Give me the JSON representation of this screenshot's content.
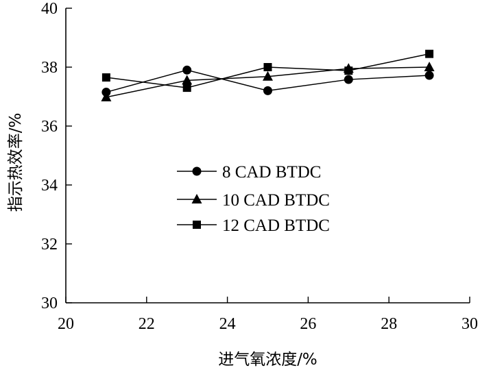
{
  "chart_data": {
    "type": "line",
    "xlabel": "进气氧浓度/%",
    "ylabel": "指示热效率/%",
    "xlim": [
      20,
      30
    ],
    "ylim": [
      30,
      40
    ],
    "xticks": [
      "20",
      "22",
      "24",
      "26",
      "28",
      "30"
    ],
    "yticks": [
      "30",
      "32",
      "34",
      "36",
      "38",
      "40"
    ],
    "grid": false,
    "legend_position": "center-left",
    "x": [
      21,
      23,
      25,
      27,
      29
    ],
    "series": [
      {
        "name": "8 CAD BTDC",
        "marker": "circle",
        "values": [
          37.15,
          37.9,
          37.2,
          37.58,
          37.72
        ]
      },
      {
        "name": "10 CAD BTDC",
        "marker": "triangle",
        "values": [
          36.98,
          37.55,
          37.68,
          37.95,
          38.0
        ]
      },
      {
        "name": "12 CAD BTDC",
        "marker": "square",
        "values": [
          37.65,
          37.3,
          38.0,
          37.88,
          38.45
        ]
      }
    ]
  }
}
